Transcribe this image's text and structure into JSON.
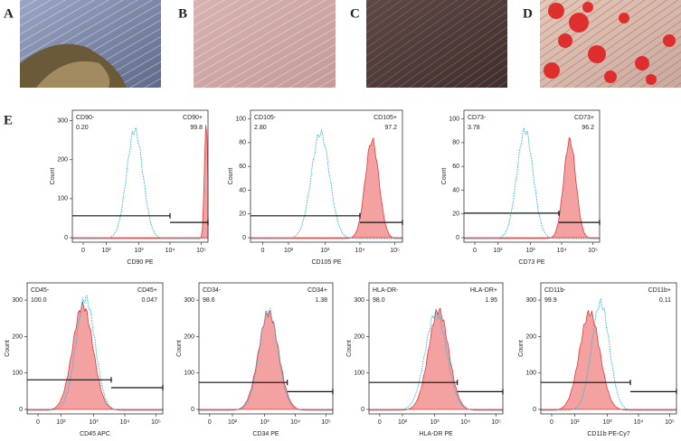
{
  "figure_labels": [
    "A",
    "B",
    "C",
    "D",
    "E"
  ],
  "histograms": [
    {
      "x_label": "CD90 PE",
      "y_label": "Count",
      "negative": {
        "name": "CD90-",
        "value": "0.20"
      },
      "positive": {
        "name": "CD90+",
        "value": "99.8"
      },
      "ylim": [
        0,
        320
      ],
      "yticks": [
        0,
        100,
        200,
        300
      ],
      "xticks": [
        "0",
        "10²",
        "10³",
        "10⁴",
        "10⁵"
      ]
    },
    {
      "x_label": "CD105 PE",
      "y_label": "Count",
      "negative": {
        "name": "CD105-",
        "value": "2.80"
      },
      "positive": {
        "name": "CD105+",
        "value": "97.2"
      },
      "ylim": [
        0,
        105
      ],
      "yticks": [
        0,
        20,
        40,
        60,
        80,
        100
      ],
      "xticks": [
        "0",
        "10²",
        "10³",
        "10⁴",
        "10⁵"
      ]
    },
    {
      "x_label": "CD73 PE",
      "y_label": "Count",
      "negative": {
        "name": "CD73-",
        "value": "3.78"
      },
      "positive": {
        "name": "CD73+",
        "value": "96.2"
      },
      "ylim": [
        0,
        105
      ],
      "yticks": [
        0,
        20,
        40,
        60,
        80,
        100
      ],
      "xticks": [
        "0",
        "10²",
        "10³",
        "10⁴",
        "10⁵"
      ]
    },
    {
      "x_label": "CD45 APC",
      "y_label": "Count",
      "negative": {
        "name": "CD45-",
        "value": "100.0"
      },
      "positive": {
        "name": "CD45+",
        "value": "0.047"
      },
      "ylim": [
        0,
        340
      ],
      "yticks": [
        0,
        100,
        200,
        300
      ],
      "xticks": [
        "0",
        "10²",
        "10³",
        "10⁴",
        "10⁵"
      ]
    },
    {
      "x_label": "CD34 PE",
      "y_label": "Count",
      "negative": {
        "name": "CD34-",
        "value": "98.6"
      },
      "positive": {
        "name": "CD34+",
        "value": "1.38"
      },
      "ylim": [
        0,
        340
      ],
      "yticks": [
        0,
        100,
        200,
        300
      ],
      "xticks": [
        "0",
        "10²",
        "10³",
        "10⁴",
        "10⁵"
      ]
    },
    {
      "x_label": "HLA-DR PE",
      "y_label": "Count",
      "negative": {
        "name": "HLA-DR-",
        "value": "98.0"
      },
      "positive": {
        "name": "HLA-DR+",
        "value": "1.95"
      },
      "ylim": [
        0,
        340
      ],
      "yticks": [
        0,
        100,
        200,
        300
      ],
      "xticks": [
        "0",
        "10²",
        "10³",
        "10⁴",
        "10⁵"
      ]
    },
    {
      "x_label": "CD11b PE-Cy7",
      "y_label": "Count",
      "negative": {
        "name": "CD11b-",
        "value": "99.9"
      },
      "positive": {
        "name": "CD11b+",
        "value": "0.11"
      },
      "ylim": [
        0,
        340
      ],
      "yticks": [
        0,
        100,
        200,
        300
      ],
      "xticks": [
        "0",
        "10²",
        "10³",
        "10⁴",
        "10⁵"
      ]
    }
  ]
}
